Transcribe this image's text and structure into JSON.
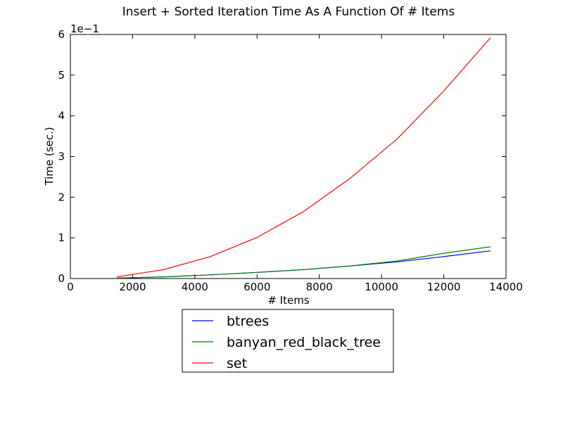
{
  "chart_data": {
    "type": "line",
    "title": "Insert + Sorted Iteration Time As A Function Of # Items",
    "xlabel": "# Items",
    "ylabel": "Time (sec.)",
    "y_offset_text": "1e−1",
    "xlim": [
      0,
      14000
    ],
    "ylim": [
      0,
      6
    ],
    "xticks": [
      0,
      2000,
      4000,
      6000,
      8000,
      10000,
      12000,
      14000
    ],
    "yticks": [
      0,
      1,
      2,
      3,
      4,
      5,
      6
    ],
    "grid": false,
    "legend_position": "bottom-center",
    "x": [
      1500,
      3000,
      4500,
      6000,
      7500,
      9000,
      10500,
      12000,
      13500
    ],
    "series": [
      {
        "name": "btrees",
        "color": "#0000ff",
        "values": [
          0.01,
          0.04,
          0.09,
          0.15,
          0.22,
          0.31,
          0.41,
          0.54,
          0.68
        ]
      },
      {
        "name": "banyan_red_black_tree",
        "color": "#008000",
        "values": [
          0.01,
          0.04,
          0.09,
          0.15,
          0.22,
          0.31,
          0.43,
          0.62,
          0.78
        ]
      },
      {
        "name": "set",
        "color": "#ff0000",
        "values": [
          0.04,
          0.22,
          0.54,
          1.01,
          1.65,
          2.47,
          3.43,
          4.61,
          5.92
        ]
      }
    ]
  }
}
